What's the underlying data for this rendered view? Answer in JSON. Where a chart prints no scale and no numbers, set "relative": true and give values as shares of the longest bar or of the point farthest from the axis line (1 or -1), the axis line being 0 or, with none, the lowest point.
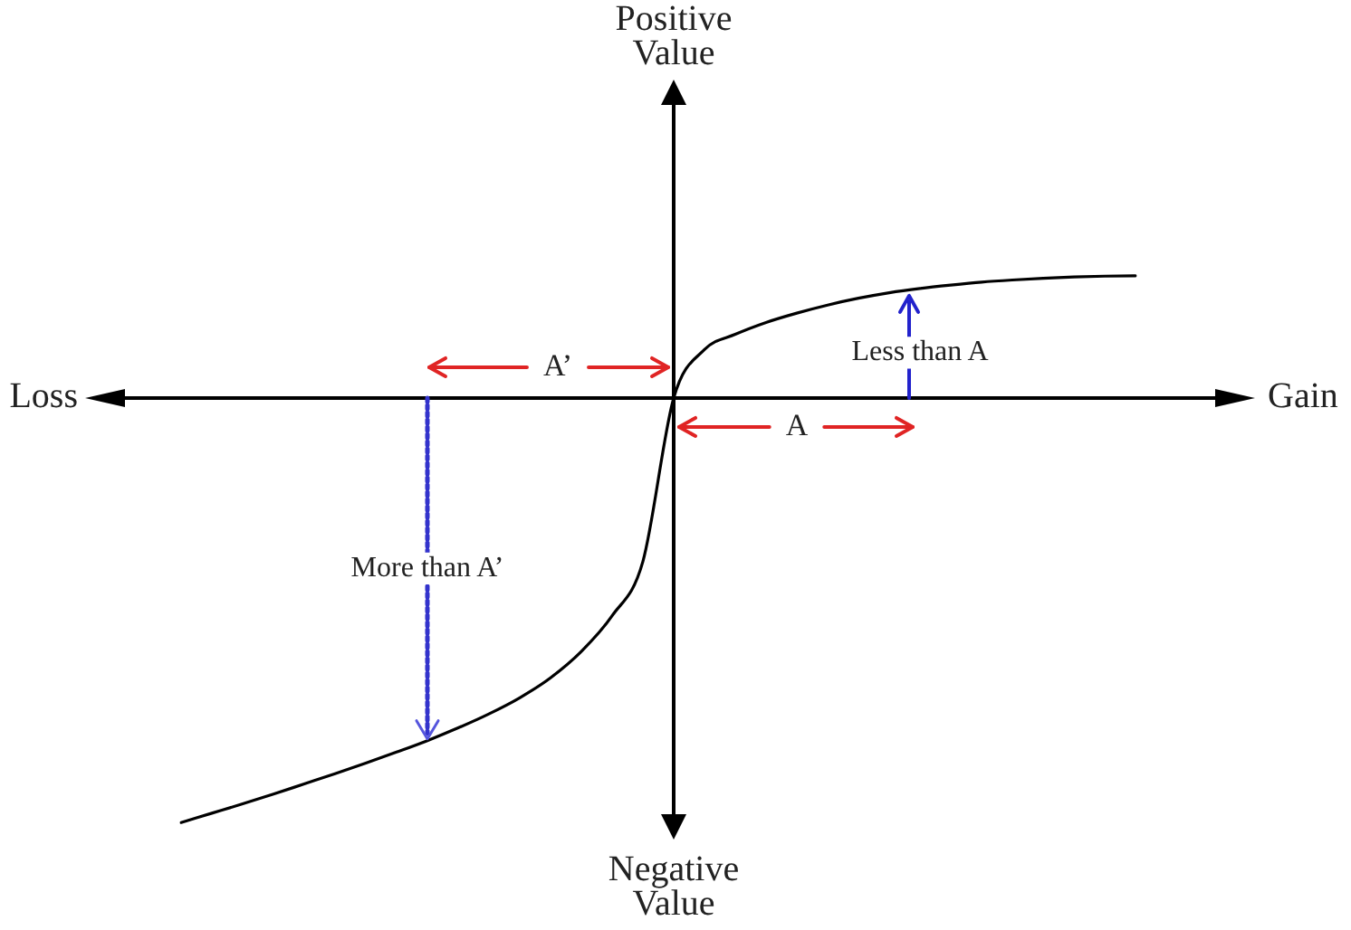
{
  "chart_data": {
    "type": "line",
    "relative": true,
    "categories": [
      null,
      null,
      null,
      null,
      null,
      null,
      null,
      null,
      null,
      null,
      null,
      null,
      null,
      null,
      null,
      null,
      null,
      null,
      null,
      null,
      null,
      null,
      null,
      null,
      null,
      null,
      null,
      null,
      null,
      null,
      null,
      null
    ],
    "values": [
      -1,
      -0.978,
      -0.956,
      -0.933,
      -0.909,
      -0.885,
      -0.86,
      -0.834,
      -0.807,
      -0.777,
      -0.744,
      -0.706,
      -0.659,
      -0.597,
      -0.513,
      -0.385,
      0,
      0.114,
      0.15,
      0.178,
      0.2,
      0.219,
      0.235,
      0.248,
      0.258,
      0.266,
      0.273,
      0.278,
      0.282,
      0.285,
      0.287,
      0.288
    ],
    "color": "#000000",
    "annotations": [
      "Positive Value",
      "Negative Value",
      "Loss",
      "Gain",
      "A’",
      "A",
      "Less than A",
      "More than A’"
    ]
  }
}
